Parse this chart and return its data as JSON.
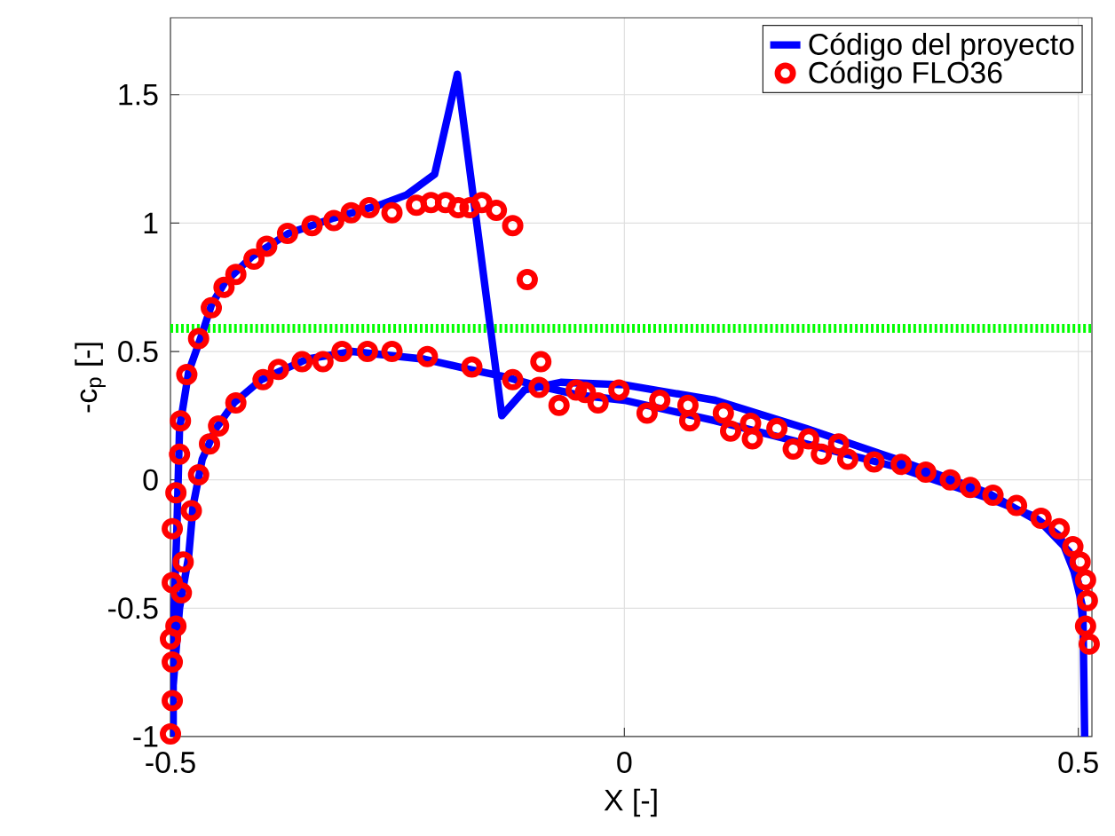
{
  "chart_data": {
    "type": "line",
    "xlabel": "X [-]",
    "ylabel": "-c$_{p}$ [-]",
    "xlim": [
      -0.5,
      0.515
    ],
    "ylim": [
      -1,
      1.8
    ],
    "xticks": [
      -0.5,
      0,
      0.5
    ],
    "yticks": [
      -1,
      -0.5,
      0,
      0.5,
      1,
      1.5
    ],
    "grid": true,
    "legend": "top right",
    "series": [
      {
        "name": "Código del proyecto",
        "color": "#0000ff",
        "line_style": "solid",
        "marker": "none",
        "x": [
          0.505,
          0.5,
          0.48,
          0.45,
          0.4,
          0.3,
          0.2,
          0.1,
          0,
          -0.05,
          -0.1,
          -0.13,
          -0.17,
          -0.22,
          -0.3,
          -0.35,
          -0.4,
          -0.43,
          -0.45,
          -0.465,
          -0.475,
          -0.48,
          -0.49,
          -0.497,
          -0.497,
          -0.497,
          -0.493,
          -0.49,
          -0.48,
          -0.465,
          -0.455,
          -0.44,
          -0.41,
          -0.37,
          -0.32,
          -0.27,
          -0.24,
          -0.209,
          -0.184,
          -0.135,
          -0.11,
          -0.07,
          0,
          0.1,
          0.2,
          0.3,
          0.4,
          0.46,
          0.49,
          0.505,
          0.507
        ],
        "values": [
          -0.55,
          -0.4,
          -0.22,
          -0.14,
          -0.07,
          0.05,
          0.14,
          0.23,
          0.31,
          0.33,
          0.37,
          0.4,
          0.43,
          0.47,
          0.5,
          0.47,
          0.39,
          0.3,
          0.2,
          0.08,
          -0.1,
          -0.3,
          -0.5,
          -0.8,
          -1.0,
          -0.6,
          -0.2,
          0.2,
          0.42,
          0.57,
          0.68,
          0.77,
          0.87,
          0.96,
          1.02,
          1.07,
          1.11,
          1.19,
          1.58,
          0.25,
          0.35,
          0.38,
          0.37,
          0.31,
          0.2,
          0.08,
          -0.05,
          -0.17,
          -0.28,
          -0.5,
          -1.0
        ]
      },
      {
        "name": "Código FLO36",
        "type": "scatter",
        "color": "#ff0000",
        "marker": "circle",
        "x": [
          -0.482,
          -0.469,
          -0.455,
          -0.441,
          -0.428,
          -0.408,
          -0.394,
          -0.371,
          -0.344,
          -0.32,
          -0.301,
          -0.281,
          -0.256,
          -0.229,
          -0.213,
          -0.197,
          -0.183,
          -0.17,
          -0.157,
          -0.141,
          -0.123,
          -0.107,
          -0.489,
          -0.49,
          -0.494,
          -0.498,
          -0.486,
          -0.498,
          -0.488,
          -0.494,
          -0.5,
          -0.498,
          -0.498,
          -0.5,
          -0.477,
          -0.469,
          -0.457,
          -0.447,
          -0.428,
          -0.398,
          -0.381,
          -0.355,
          -0.332,
          -0.311,
          -0.283,
          -0.256,
          -0.217,
          -0.168,
          -0.123,
          -0.094,
          -0.092,
          -0.072,
          -0.053,
          -0.043,
          -0.029,
          -0.006,
          0.025,
          0.039,
          0.07,
          0.072,
          0.109,
          0.117,
          0.139,
          0.141,
          0.168,
          0.186,
          0.203,
          0.217,
          0.236,
          0.246,
          0.275,
          0.305,
          0.332,
          0.359,
          0.381,
          0.406,
          0.432,
          0.459,
          0.479,
          0.494,
          0.502,
          0.508,
          0.51,
          0.508,
          0.512
        ],
        "values": [
          0.41,
          0.55,
          0.67,
          0.75,
          0.8,
          0.86,
          0.91,
          0.96,
          0.99,
          1.01,
          1.04,
          1.06,
          1.04,
          1.07,
          1.08,
          1.08,
          1.06,
          1.06,
          1.08,
          1.05,
          0.99,
          0.78,
          0.23,
          0.1,
          -0.05,
          -0.19,
          -0.32,
          -0.4,
          -0.44,
          -0.57,
          -0.62,
          -0.71,
          -0.86,
          -0.99,
          -0.12,
          0.02,
          0.14,
          0.21,
          0.3,
          0.39,
          0.43,
          0.46,
          0.46,
          0.5,
          0.5,
          0.5,
          0.48,
          0.44,
          0.39,
          0.36,
          0.46,
          0.29,
          0.35,
          0.34,
          0.3,
          0.35,
          0.26,
          0.31,
          0.29,
          0.23,
          0.26,
          0.19,
          0.22,
          0.16,
          0.2,
          0.12,
          0.16,
          0.1,
          0.14,
          0.08,
          0.07,
          0.06,
          0.03,
          0.0,
          -0.03,
          -0.06,
          -0.1,
          -0.15,
          -0.19,
          -0.26,
          -0.32,
          -0.39,
          -0.47,
          -0.57,
          -0.64
        ]
      }
    ],
    "ref_lines": [
      {
        "axis": "y",
        "value": 0.59,
        "color": "#00ff00",
        "line_style": "dotted"
      }
    ]
  }
}
